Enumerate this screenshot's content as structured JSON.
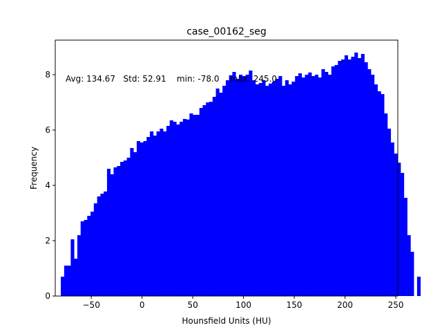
{
  "chart_data": {
    "type": "bar",
    "title": "case_00162_seg",
    "xlabel": "Hounsfield Units (HU)",
    "ylabel": "Frequency",
    "xlim": [
      -85.5,
      252.0
    ],
    "ylim": [
      0,
      9.25
    ],
    "bin_start": -80,
    "bin_width": 3.25,
    "bar_color": "#0000ff",
    "grid": false,
    "annotation": "Avg: 134.67   Std: 52.91    min: -78.0    max: 245.0",
    "x_ticks": [
      -50,
      0,
      50,
      100,
      150,
      200,
      250
    ],
    "x_tick_labels": [
      "−50",
      "0",
      "50",
      "100",
      "150",
      "200",
      "250"
    ],
    "y_ticks": [
      0,
      2,
      4,
      6,
      8
    ],
    "y_tick_labels": [
      "0",
      "2",
      "4",
      "6",
      "8"
    ],
    "values": [
      0.7,
      1.1,
      1.1,
      2.05,
      1.35,
      2.2,
      2.7,
      2.75,
      2.9,
      3.05,
      3.35,
      3.6,
      3.7,
      3.78,
      4.6,
      4.4,
      4.65,
      4.7,
      4.85,
      4.9,
      5.0,
      5.35,
      5.2,
      5.6,
      5.55,
      5.6,
      5.75,
      5.95,
      5.8,
      5.95,
      6.05,
      5.95,
      6.15,
      6.35,
      6.3,
      6.2,
      6.3,
      6.4,
      6.38,
      6.6,
      6.55,
      6.55,
      6.8,
      6.9,
      7.0,
      7.02,
      7.2,
      7.5,
      7.35,
      7.6,
      7.8,
      7.98,
      8.1,
      7.85,
      8.0,
      7.95,
      8.0,
      8.15,
      7.8,
      7.65,
      7.7,
      7.8,
      7.6,
      7.68,
      7.75,
      7.85,
      7.95,
      7.6,
      7.8,
      7.65,
      7.75,
      7.95,
      8.05,
      7.9,
      8.0,
      8.08,
      7.95,
      8.0,
      7.9,
      8.2,
      8.1,
      8.0,
      8.3,
      8.35,
      8.5,
      8.55,
      8.7,
      8.55,
      8.65,
      8.8,
      8.6,
      8.75,
      8.45,
      8.2,
      8.0,
      7.65,
      7.4,
      7.3,
      6.6,
      6.05,
      5.55,
      5.15,
      4.82,
      4.45,
      3.55,
      2.2,
      1.6,
      0,
      0.7
    ]
  }
}
